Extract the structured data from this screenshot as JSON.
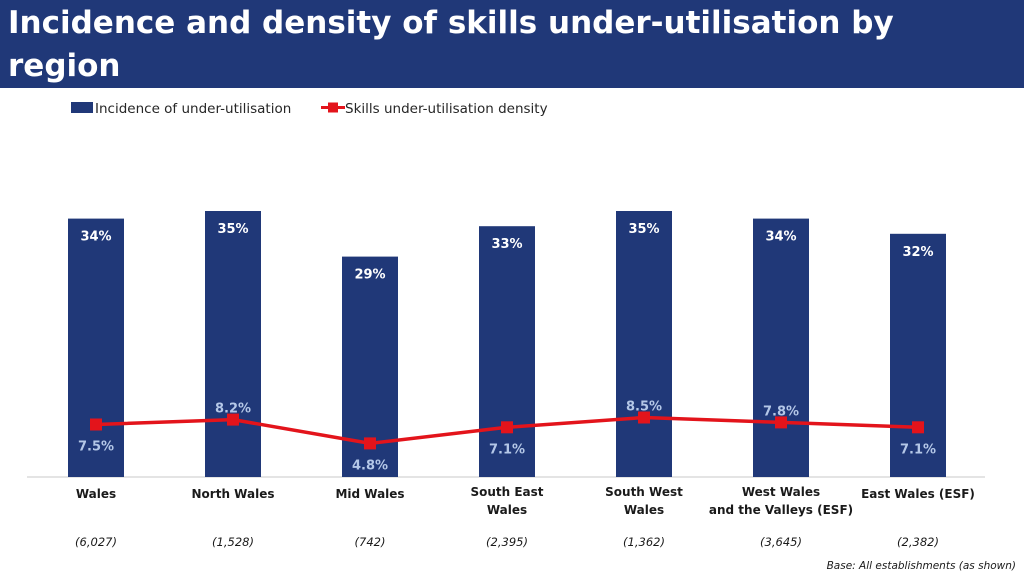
{
  "title": "Incidence and density of skills under-utilisation by region",
  "footnote": "Base: All establishments (as shown)",
  "colors": {
    "title_bg": "#203878",
    "bar": "#203878",
    "line": "#e3141b",
    "bar_label": "#ffffff",
    "point_label": "#b4c7e7"
  },
  "chart_data": {
    "type": "bar",
    "legend_position": "top-left",
    "grid": false,
    "ylim": [
      0,
      35
    ],
    "categories": [
      [
        "Wales"
      ],
      [
        "North Wales"
      ],
      [
        "Mid Wales"
      ],
      [
        "South East",
        "Wales"
      ],
      [
        "South West",
        "Wales"
      ],
      [
        "West Wales",
        "and the Valleys (ESF)"
      ],
      [
        "East Wales (ESF)"
      ]
    ],
    "bases": [
      "(6,027)",
      "(1,528)",
      "(742)",
      "(2,395)",
      "(1,362)",
      "(3,645)",
      "(2,382)"
    ],
    "series": [
      {
        "name": "Incidence of under-utilisation",
        "type": "bar",
        "values": [
          34,
          35,
          29,
          33,
          35,
          34,
          32
        ],
        "labels": [
          "34%",
          "35%",
          "29%",
          "33%",
          "35%",
          "34%",
          "32%"
        ]
      },
      {
        "name": "Skills under-utilisation density",
        "type": "line",
        "values": [
          7.5,
          8.2,
          4.8,
          7.1,
          8.5,
          7.8,
          7.1
        ],
        "labels": [
          "7.5%",
          "8.2%",
          "4.8%",
          "7.1%",
          "8.5%",
          "7.8%",
          "7.1%"
        ]
      }
    ]
  }
}
